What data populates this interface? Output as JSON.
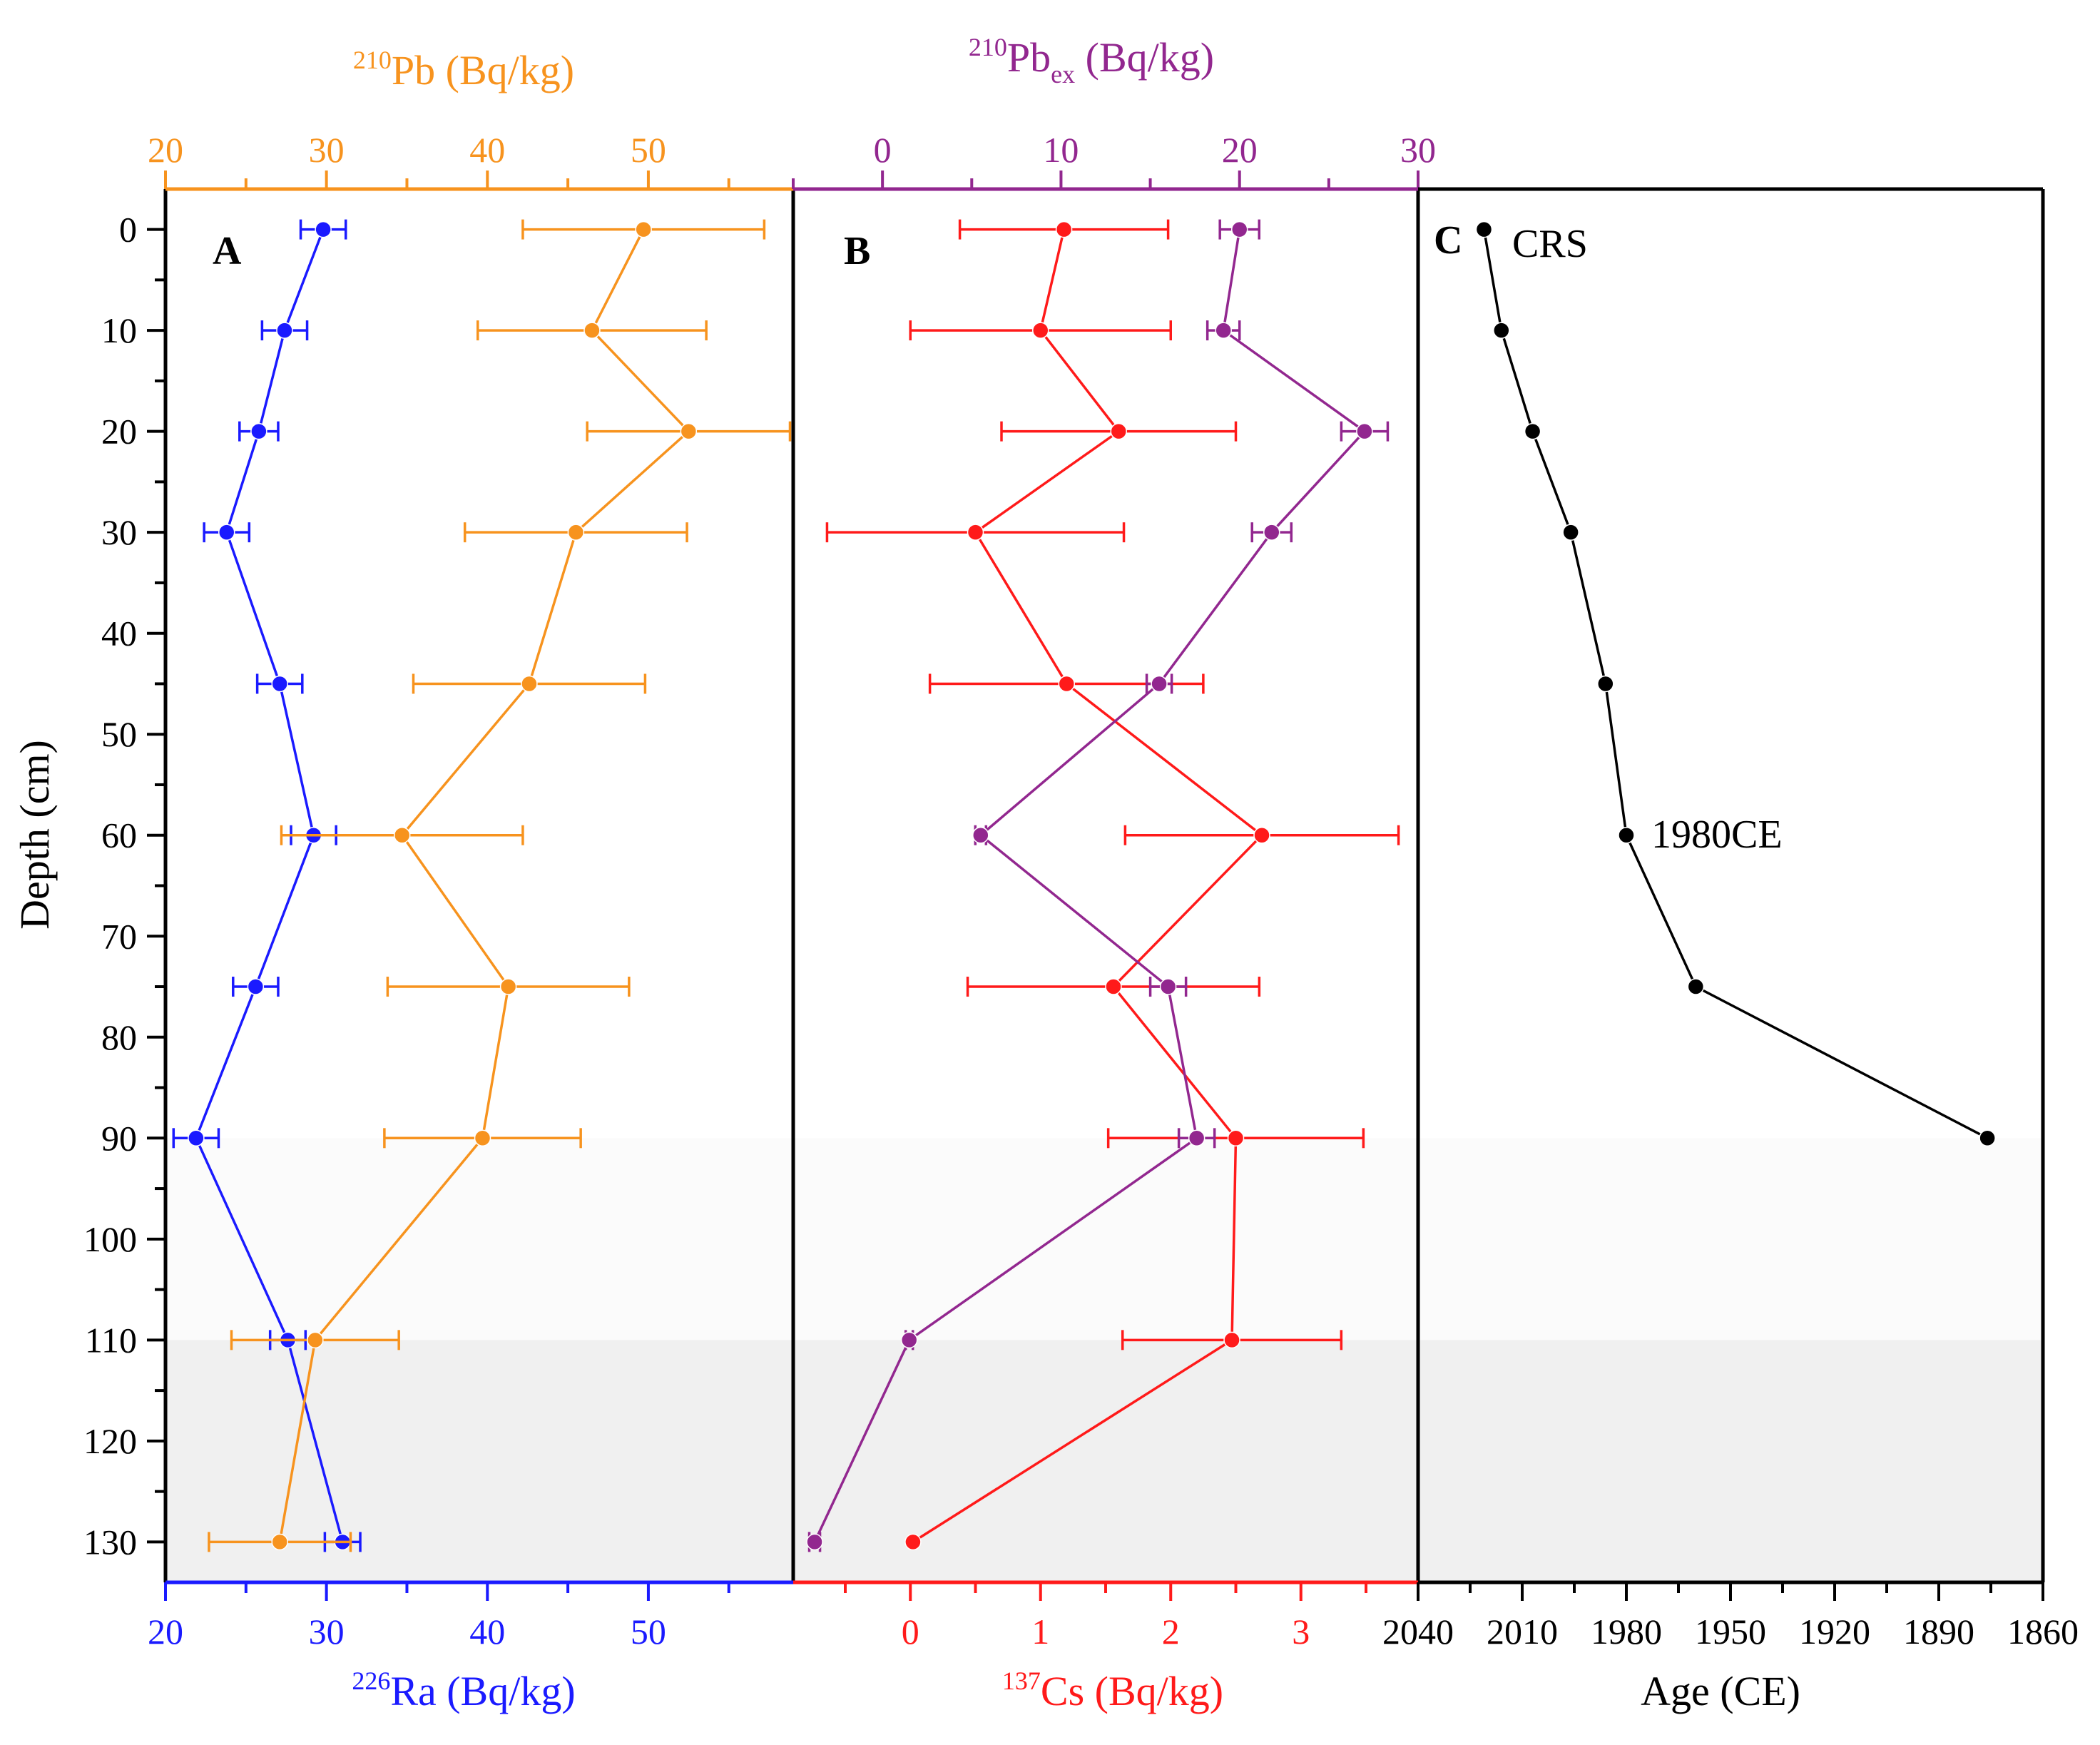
{
  "colors": {
    "pb210": "#f7931e",
    "ra226": "#1a1aff",
    "pbex": "#92278f",
    "cs137": "#ff1a1a",
    "age": "#000000",
    "frame": "#000000",
    "shade_light": "#fbfbfb",
    "shade_dark": "#f0f0f0"
  },
  "axis_titles": {
    "pb210": {
      "sup": "210",
      "main": "Pb (Bq/kg)"
    },
    "ra226": {
      "sup": "226",
      "main": "Ra (Bq/kg)"
    },
    "pbex": {
      "sup": "210",
      "main": "Pb",
      "sub": "ex",
      "tail": " (Bq/kg)"
    },
    "cs137": {
      "sup": "137",
      "main": "Cs (Bq/kg)"
    },
    "age": "Age (CE)",
    "depth": "Depth (cm)"
  },
  "panel_labels": {
    "a": "A",
    "b": "B",
    "c": "C"
  },
  "annotations": {
    "crs": "CRS",
    "ce1980": "1980CE"
  },
  "chart_data": {
    "type": "scatter",
    "y_axis": {
      "label": "Depth (cm)",
      "range": [
        -4,
        134
      ],
      "ticks": [
        0,
        10,
        20,
        30,
        40,
        50,
        60,
        70,
        80,
        90,
        100,
        110,
        120,
        130
      ],
      "reversed": true
    },
    "shaded_bands": [
      {
        "from": 90,
        "to": 110,
        "style": "light"
      },
      {
        "from": 110,
        "to": 134,
        "style": "dark"
      }
    ],
    "panels": [
      {
        "label": "A",
        "axes": {
          "top": {
            "label": "210Pb (Bq/kg)",
            "range": [
              20,
              59
            ],
            "ticks": [
              20,
              30,
              40,
              50
            ]
          },
          "bottom": {
            "label": "226Ra (Bq/kg)",
            "range": [
              20,
              59
            ],
            "ticks": [
              20,
              30,
              40,
              50
            ]
          }
        },
        "series": [
          {
            "name": "226Ra",
            "axis": "bottom",
            "color_key": "ra226",
            "points": [
              {
                "depth": 0,
                "value": 29.8,
                "err": 1.4
              },
              {
                "depth": 10,
                "value": 27.4,
                "err": 1.4
              },
              {
                "depth": 20,
                "value": 25.8,
                "err": 1.2
              },
              {
                "depth": 30,
                "value": 23.8,
                "err": 1.4
              },
              {
                "depth": 45,
                "value": 27.1,
                "err": 1.4
              },
              {
                "depth": 60,
                "value": 29.2,
                "err": 1.4
              },
              {
                "depth": 75,
                "value": 25.6,
                "err": 1.4
              },
              {
                "depth": 90,
                "value": 21.9,
                "err": 1.4
              },
              {
                "depth": 110,
                "value": 27.6,
                "err": 1.1
              },
              {
                "depth": 130,
                "value": 31.0,
                "err": 1.1
              }
            ]
          },
          {
            "name": "210Pb",
            "axis": "top",
            "color_key": "pb210",
            "points": [
              {
                "depth": 0,
                "value": 49.7,
                "err": 7.5
              },
              {
                "depth": 10,
                "value": 46.5,
                "err": 7.1
              },
              {
                "depth": 20,
                "value": 52.5,
                "err": 6.3
              },
              {
                "depth": 30,
                "value": 45.5,
                "err": 6.9
              },
              {
                "depth": 45,
                "value": 42.6,
                "err": 7.2
              },
              {
                "depth": 60,
                "value": 34.7,
                "err": 7.5
              },
              {
                "depth": 75,
                "value": 41.3,
                "err": 7.5
              },
              {
                "depth": 90,
                "value": 39.7,
                "err": 6.1
              },
              {
                "depth": 110,
                "value": 29.3,
                "err": 5.2
              },
              {
                "depth": 130,
                "value": 27.1,
                "err": 4.4
              }
            ]
          }
        ]
      },
      {
        "label": "B",
        "axes": {
          "top": {
            "label": "210Pbex (Bq/kg)",
            "range": [
              -5,
              30
            ],
            "ticks": [
              0,
              10,
              20,
              30
            ]
          },
          "bottom": {
            "label": "137Cs (Bq/kg)",
            "range": [
              -0.9,
              3.9
            ],
            "ticks": [
              0,
              1,
              2,
              3
            ]
          }
        },
        "series": [
          {
            "name": "137Cs",
            "axis": "bottom",
            "color_key": "cs137",
            "points": [
              {
                "depth": 0,
                "value": 1.18,
                "err": 0.8
              },
              {
                "depth": 10,
                "value": 1.0,
                "err": 1.0
              },
              {
                "depth": 20,
                "value": 1.6,
                "err": 0.9
              },
              {
                "depth": 30,
                "value": 0.5,
                "err": 1.14
              },
              {
                "depth": 45,
                "value": 1.2,
                "err": 1.05
              },
              {
                "depth": 60,
                "value": 2.7,
                "err": 1.05
              },
              {
                "depth": 75,
                "value": 1.56,
                "err": 1.12
              },
              {
                "depth": 90,
                "value": 2.5,
                "err": 0.98
              },
              {
                "depth": 110,
                "value": 2.47,
                "err": 0.84
              },
              {
                "depth": 130,
                "value": 0.02,
                "err": 0
              }
            ]
          },
          {
            "name": "210Pbex",
            "axis": "top",
            "color_key": "pbex",
            "points": [
              {
                "depth": 0,
                "value": 20.0,
                "err": 1.1
              },
              {
                "depth": 10,
                "value": 19.1,
                "err": 0.9
              },
              {
                "depth": 20,
                "value": 27.0,
                "err": 1.3
              },
              {
                "depth": 30,
                "value": 21.8,
                "err": 1.1
              },
              {
                "depth": 45,
                "value": 15.5,
                "err": 0.7
              },
              {
                "depth": 60,
                "value": 5.5,
                "err": 0.3
              },
              {
                "depth": 75,
                "value": 16.0,
                "err": 1.0
              },
              {
                "depth": 90,
                "value": 17.6,
                "err": 1.0
              },
              {
                "depth": 110,
                "value": 1.5,
                "err": 0.2
              },
              {
                "depth": 130,
                "value": -3.8,
                "err": 0.3
              }
            ]
          }
        ]
      },
      {
        "label": "C",
        "axes": {
          "bottom": {
            "label": "Age (CE)",
            "range": [
              2040,
              1860
            ],
            "ticks": [
              2040,
              2010,
              1980,
              1950,
              1920,
              1890,
              1860
            ]
          }
        },
        "series": [
          {
            "name": "CRS",
            "axis": "bottom",
            "color_key": "age",
            "points": [
              {
                "depth": 0,
                "value": 2021
              },
              {
                "depth": 10,
                "value": 2016
              },
              {
                "depth": 20,
                "value": 2007
              },
              {
                "depth": 30,
                "value": 1996
              },
              {
                "depth": 45,
                "value": 1986
              },
              {
                "depth": 60,
                "value": 1980
              },
              {
                "depth": 75,
                "value": 1960
              },
              {
                "depth": 90,
                "value": 1876
              }
            ]
          }
        ]
      }
    ]
  }
}
